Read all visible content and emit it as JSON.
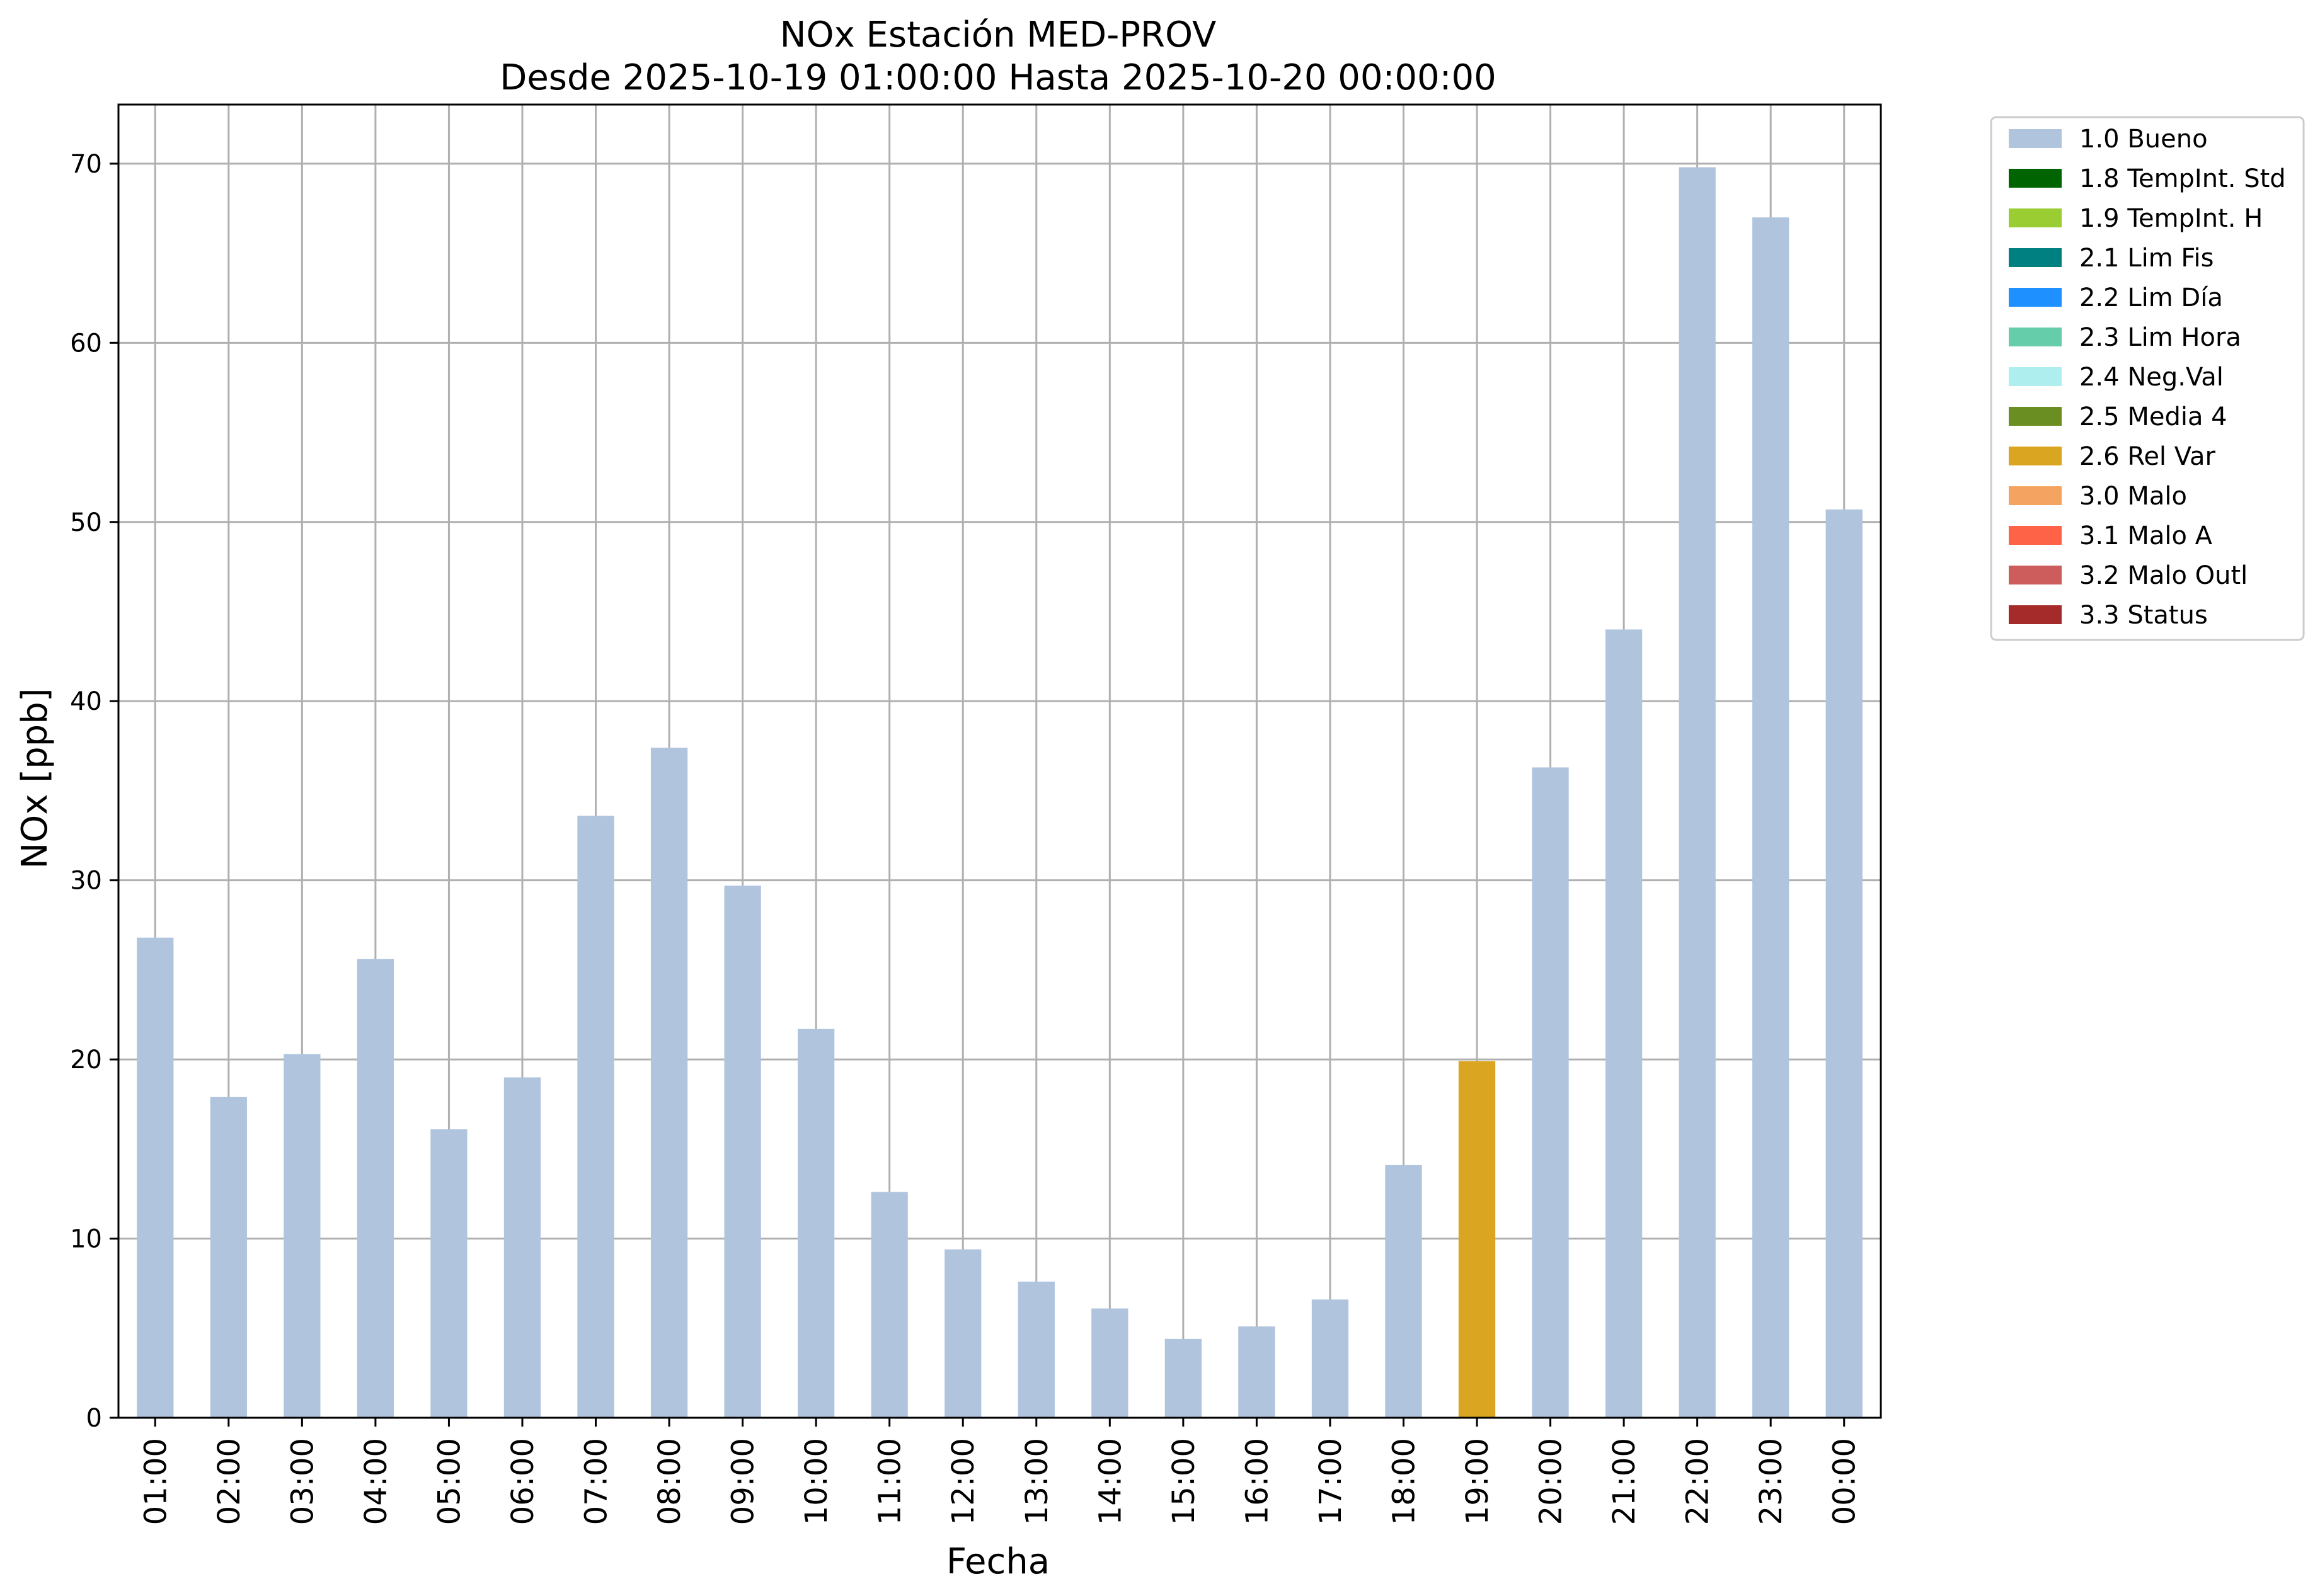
{
  "chart_data": {
    "type": "bar",
    "title": "NOx Estación MED-PROV",
    "subtitle": "Desde 2025-10-19 01:00:00 Hasta 2025-10-20 00:00:00",
    "xlabel": "Fecha",
    "ylabel": "NOx [ppb]",
    "ylim": [
      0,
      73.3
    ],
    "yticks": [
      0,
      10,
      20,
      30,
      40,
      50,
      60,
      70
    ],
    "grid": true,
    "legend_position": "outside top-right",
    "categories": [
      "01:00",
      "02:00",
      "03:00",
      "04:00",
      "05:00",
      "06:00",
      "07:00",
      "08:00",
      "09:00",
      "10:00",
      "11:00",
      "12:00",
      "13:00",
      "14:00",
      "15:00",
      "16:00",
      "17:00",
      "18:00",
      "19:00",
      "20:00",
      "21:00",
      "22:00",
      "23:00",
      "00:00"
    ],
    "values": [
      26.8,
      17.9,
      20.3,
      25.6,
      16.1,
      19.0,
      33.6,
      37.4,
      29.7,
      21.7,
      12.6,
      9.4,
      7.6,
      6.1,
      4.4,
      5.1,
      6.6,
      14.1,
      19.9,
      36.3,
      44.0,
      69.8,
      67.0,
      50.7
    ],
    "flags": [
      "1.0 Bueno",
      "1.0 Bueno",
      "1.0 Bueno",
      "1.0 Bueno",
      "1.0 Bueno",
      "1.0 Bueno",
      "1.0 Bueno",
      "1.0 Bueno",
      "1.0 Bueno",
      "1.0 Bueno",
      "1.0 Bueno",
      "1.0 Bueno",
      "1.0 Bueno",
      "1.0 Bueno",
      "1.0 Bueno",
      "1.0 Bueno",
      "1.0 Bueno",
      "1.0 Bueno",
      "2.6 Rel Var",
      "1.0 Bueno",
      "1.0 Bueno",
      "1.0 Bueno",
      "1.0 Bueno",
      "1.0 Bueno"
    ],
    "legend": [
      {
        "label": "1.0 Bueno",
        "color": "#b0c4de"
      },
      {
        "label": "1.8 TempInt. Std",
        "color": "#006400"
      },
      {
        "label": "1.9 TempInt. H",
        "color": "#9acd32"
      },
      {
        "label": "2.1 Lim Fis",
        "color": "#008080"
      },
      {
        "label": "2.2 Lim Día",
        "color": "#1e90ff"
      },
      {
        "label": "2.3 Lim Hora",
        "color": "#66cdaa"
      },
      {
        "label": "2.4 Neg.Val",
        "color": "#afeeee"
      },
      {
        "label": "2.5 Media 4",
        "color": "#6b8e23"
      },
      {
        "label": "2.6 Rel Var",
        "color": "#daa520"
      },
      {
        "label": "3.0 Malo",
        "color": "#f4a460"
      },
      {
        "label": "3.1 Malo A",
        "color": "#ff6347"
      },
      {
        "label": "3.2 Malo Outl",
        "color": "#cd5c5c"
      },
      {
        "label": "3.3 Status",
        "color": "#a52a2a"
      }
    ]
  }
}
